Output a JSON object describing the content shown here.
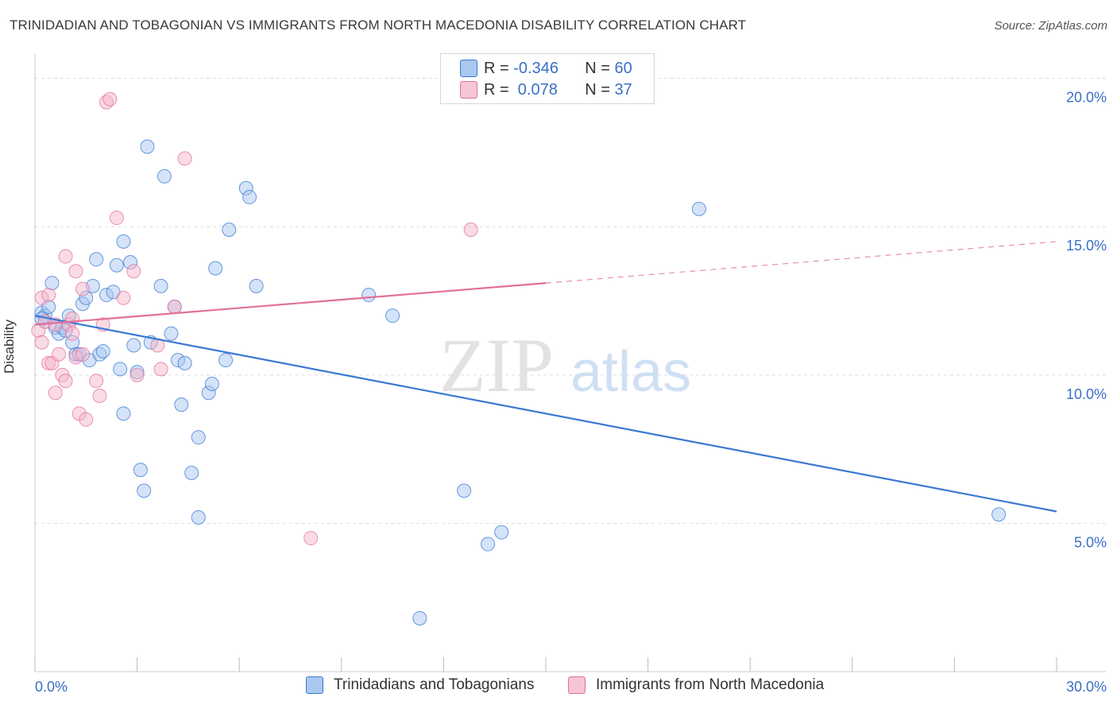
{
  "title": "TRINIDADIAN AND TOBAGONIAN VS IMMIGRANTS FROM NORTH MACEDONIA DISABILITY CORRELATION CHART",
  "source": "Source: ZipAtlas.com",
  "watermark": {
    "zip": "ZIP",
    "atlas": "atlas"
  },
  "colors": {
    "blue": "#3a78d4",
    "blue_fill": "#aac8f0",
    "pink": "#e0709a",
    "pink_fill": "#f5b8cc",
    "tick_text": "#3a6fc4",
    "grid": "#dddddd"
  },
  "legend_top": {
    "rows": [
      {
        "r_label": "R = ",
        "r_value": "-0.346",
        "n_label": "N = ",
        "n_value": "60"
      },
      {
        "r_label": "R = ",
        "r_value": " 0.078",
        "n_label": "N = ",
        "n_value": "37"
      }
    ]
  },
  "chart_data": {
    "type": "scatter",
    "title": "TRINIDADIAN AND TOBAGONIAN VS IMMIGRANTS FROM NORTH MACEDONIA DISABILITY CORRELATION CHART",
    "xlabel": "",
    "ylabel": "Disability",
    "xlim": [
      0,
      30
    ],
    "ylim": [
      0,
      20.5
    ],
    "x_tick_labels": [
      "0.0%",
      "30.0%"
    ],
    "y_ticks": [
      5,
      10,
      15,
      20
    ],
    "y_tick_labels": [
      "5.0%",
      "10.0%",
      "15.0%",
      "20.0%"
    ],
    "grid": true,
    "legend_position": "bottom",
    "series": [
      {
        "name": "Trinidadians and Tobagonians",
        "color": "#3a78d4",
        "trend": {
          "x": [
            0,
            30
          ],
          "y": [
            12.0,
            5.4
          ],
          "dashed_from": null
        },
        "points": [
          [
            0.2,
            12.1
          ],
          [
            0.3,
            12.0
          ],
          [
            0.3,
            11.8
          ],
          [
            0.4,
            12.3
          ],
          [
            0.5,
            13.1
          ],
          [
            0.6,
            11.6
          ],
          [
            0.7,
            11.4
          ],
          [
            0.8,
            11.6
          ],
          [
            0.9,
            11.5
          ],
          [
            1.0,
            12.0
          ],
          [
            1.1,
            11.1
          ],
          [
            1.2,
            10.7
          ],
          [
            1.3,
            10.7
          ],
          [
            1.4,
            12.4
          ],
          [
            1.5,
            12.6
          ],
          [
            1.6,
            10.5
          ],
          [
            1.7,
            13.0
          ],
          [
            1.8,
            13.9
          ],
          [
            1.9,
            10.7
          ],
          [
            2.0,
            10.8
          ],
          [
            2.1,
            12.7
          ],
          [
            2.3,
            12.8
          ],
          [
            2.4,
            13.7
          ],
          [
            2.5,
            10.2
          ],
          [
            2.6,
            14.5
          ],
          [
            2.6,
            8.7
          ],
          [
            2.8,
            13.8
          ],
          [
            2.9,
            11.0
          ],
          [
            3.0,
            10.1
          ],
          [
            3.1,
            6.8
          ],
          [
            3.2,
            6.1
          ],
          [
            3.3,
            17.7
          ],
          [
            3.4,
            11.1
          ],
          [
            3.7,
            13.0
          ],
          [
            3.8,
            16.7
          ],
          [
            4.0,
            11.4
          ],
          [
            4.1,
            12.3
          ],
          [
            4.2,
            10.5
          ],
          [
            4.3,
            9.0
          ],
          [
            4.4,
            10.4
          ],
          [
            4.6,
            6.7
          ],
          [
            4.8,
            5.2
          ],
          [
            4.8,
            7.9
          ],
          [
            5.1,
            9.4
          ],
          [
            5.2,
            9.7
          ],
          [
            5.3,
            13.6
          ],
          [
            5.6,
            10.5
          ],
          [
            5.7,
            14.9
          ],
          [
            6.2,
            16.3
          ],
          [
            6.3,
            16.0
          ],
          [
            6.5,
            13.0
          ],
          [
            9.8,
            12.7
          ],
          [
            10.5,
            12.0
          ],
          [
            11.3,
            1.8
          ],
          [
            12.6,
            6.1
          ],
          [
            13.3,
            4.3
          ],
          [
            13.7,
            4.7
          ],
          [
            19.5,
            15.6
          ],
          [
            28.3,
            5.3
          ],
          [
            0.2,
            11.9
          ]
        ]
      },
      {
        "name": "Immigrants from North Macedonia",
        "color": "#e0709a",
        "trend": {
          "x": [
            0,
            30
          ],
          "y": [
            11.7,
            14.5
          ],
          "dashed_from": 15
        },
        "points": [
          [
            0.1,
            11.5
          ],
          [
            0.2,
            11.1
          ],
          [
            0.2,
            12.6
          ],
          [
            0.3,
            11.8
          ],
          [
            0.4,
            12.7
          ],
          [
            0.4,
            10.4
          ],
          [
            0.5,
            10.4
          ],
          [
            0.6,
            9.4
          ],
          [
            0.6,
            11.7
          ],
          [
            0.7,
            10.7
          ],
          [
            0.8,
            10.0
          ],
          [
            0.9,
            9.8
          ],
          [
            0.9,
            14.0
          ],
          [
            1.0,
            11.7
          ],
          [
            1.1,
            11.9
          ],
          [
            1.1,
            11.4
          ],
          [
            1.2,
            13.5
          ],
          [
            1.2,
            10.6
          ],
          [
            1.3,
            8.7
          ],
          [
            1.4,
            10.7
          ],
          [
            1.4,
            12.9
          ],
          [
            1.5,
            8.5
          ],
          [
            1.8,
            9.8
          ],
          [
            1.9,
            9.3
          ],
          [
            2.0,
            11.7
          ],
          [
            2.1,
            19.2
          ],
          [
            2.2,
            19.3
          ],
          [
            2.4,
            15.3
          ],
          [
            2.6,
            12.6
          ],
          [
            2.9,
            13.5
          ],
          [
            3.0,
            10.0
          ],
          [
            3.6,
            11.0
          ],
          [
            3.7,
            10.2
          ],
          [
            4.1,
            12.3
          ],
          [
            4.4,
            17.3
          ],
          [
            8.1,
            4.5
          ],
          [
            12.8,
            14.9
          ]
        ]
      }
    ]
  }
}
